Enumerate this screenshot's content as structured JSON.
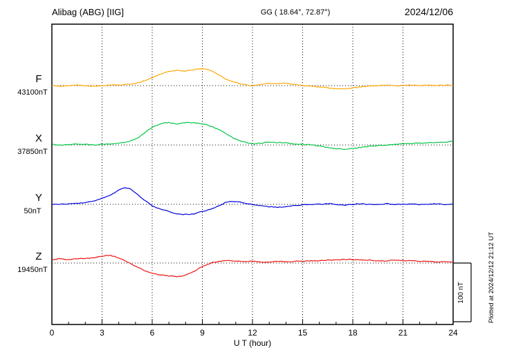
{
  "header": {
    "station": "Alibag (ABG)  [IIG]",
    "coords": "GG ( 18.64°, 72.87°)",
    "date": "2024/12/06"
  },
  "axis": {
    "xlabel": "U T (hour)",
    "tick_hours": [
      0,
      3,
      6,
      9,
      12,
      15,
      18,
      21,
      24
    ],
    "tick_labels": [
      "0",
      "3",
      "6",
      "9",
      "12",
      "15",
      "18",
      "21",
      "24"
    ],
    "grid_hours": [
      3,
      6,
      9,
      12,
      15,
      18,
      21
    ]
  },
  "scalebar": {
    "label": "100 nT",
    "nT": 100
  },
  "footnote": "Plotted at 2024/12/12 21:12 UT",
  "chart_data": {
    "type": "line",
    "title": "Alibag (ABG) [IIG] magnetogram for 2024/12/06",
    "xlabel": "U T (hour)",
    "x_range": [
      0,
      24
    ],
    "x_step_hours": 0.5,
    "grid": "dotted vertical every 3 hours; dotted horizontal baseline per trace",
    "scale_bar_nT": 100,
    "units": "values are nT deviation from each trace baseline",
    "series": [
      {
        "name": "F",
        "baseline_label": "43100nT",
        "color": "#ffa500",
        "values": [
          0,
          -1,
          0,
          1,
          0,
          -1,
          0,
          1,
          1,
          2,
          4,
          8,
          14,
          20,
          24,
          26,
          25,
          27,
          29,
          26,
          18,
          10,
          5,
          2,
          0,
          2,
          4,
          3,
          4,
          2,
          0,
          -1,
          -2,
          -4,
          -5,
          -6,
          -4,
          -2,
          -1,
          0,
          1,
          0,
          0,
          1,
          0,
          1,
          0,
          1,
          0
        ]
      },
      {
        "name": "X",
        "baseline_label": "37850nT",
        "color": "#00c544",
        "values": [
          1,
          0,
          1,
          2,
          1,
          0,
          1,
          2,
          3,
          5,
          10,
          20,
          30,
          36,
          38,
          36,
          38,
          38,
          36,
          32,
          26,
          18,
          10,
          5,
          2,
          3,
          5,
          4,
          4,
          2,
          1,
          0,
          -2,
          -4,
          -6,
          -7,
          -6,
          -4,
          -2,
          -1,
          0,
          1,
          2,
          3,
          3,
          4,
          4,
          5,
          6
        ]
      },
      {
        "name": "Y",
        "baseline_label": "50nT",
        "color": "#0000dd",
        "values": [
          0,
          0,
          1,
          2,
          3,
          6,
          10,
          16,
          24,
          28,
          20,
          8,
          -2,
          -8,
          -12,
          -16,
          -17,
          -16,
          -12,
          -8,
          -2,
          4,
          5,
          2,
          0,
          -2,
          -4,
          -5,
          -4,
          -2,
          -1,
          0,
          0,
          1,
          0,
          -1,
          0,
          1,
          0,
          0,
          1,
          0,
          0,
          1,
          0,
          0,
          1,
          0,
          0
        ]
      },
      {
        "name": "Z",
        "baseline_label": "19450nT",
        "color": "#ee1111",
        "values": [
          6,
          7,
          6,
          7,
          8,
          9,
          12,
          13,
          8,
          2,
          -6,
          -12,
          -17,
          -20,
          -22,
          -23,
          -20,
          -14,
          -6,
          0,
          3,
          4,
          3,
          2,
          3,
          2,
          2,
          3,
          2,
          3,
          3,
          4,
          4,
          5,
          5,
          6,
          6,
          5,
          5,
          4,
          4,
          5,
          4,
          4,
          3,
          3,
          2,
          2,
          1
        ]
      }
    ]
  }
}
